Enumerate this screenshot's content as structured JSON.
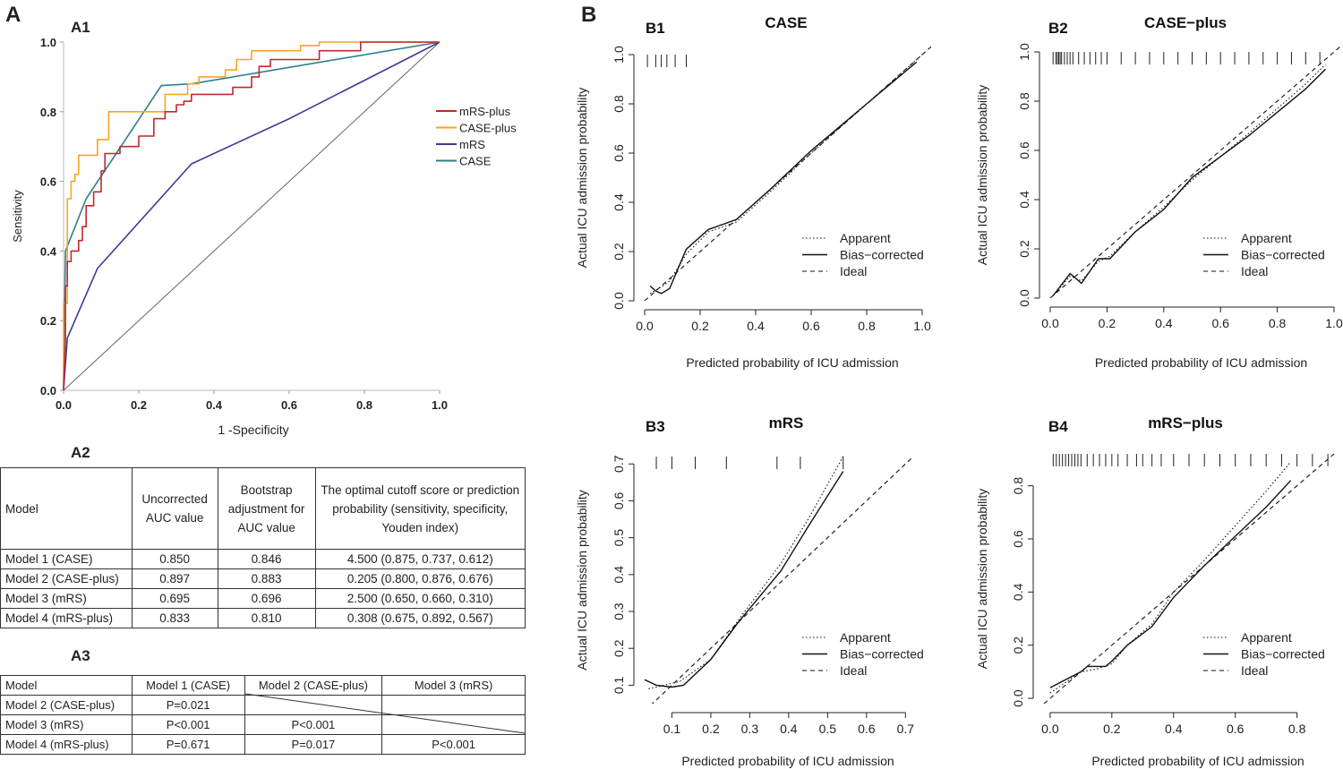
{
  "panels": {
    "a": "A",
    "b": "B"
  },
  "a1": {
    "label": "A1",
    "chart_data": {
      "type": "line",
      "title": "",
      "xlabel": "1 -Specificity",
      "ylabel": "Sensitivity",
      "xlim": [
        0,
        1
      ],
      "ylim": [
        0,
        1
      ],
      "xticks": [
        "0.0",
        "0.2",
        "0.4",
        "0.6",
        "0.8",
        "1.0"
      ],
      "yticks": [
        "0.0",
        "0.2",
        "0.4",
        "0.6",
        "0.8",
        "1.0"
      ],
      "legend": "right",
      "series": [
        {
          "name": "mRS-plus",
          "color": "#c0282d",
          "x": [
            0,
            0.005,
            0.005,
            0.01,
            0.01,
            0.02,
            0.02,
            0.04,
            0.04,
            0.05,
            0.05,
            0.06,
            0.06,
            0.08,
            0.08,
            0.1,
            0.1,
            0.11,
            0.11,
            0.15,
            0.15,
            0.17,
            0.2,
            0.2,
            0.24,
            0.24,
            0.27,
            0.27,
            0.3,
            0.3,
            0.32,
            0.32,
            0.34,
            0.34,
            0.38,
            0.38,
            0.45,
            0.45,
            0.5,
            0.5,
            0.52,
            0.52,
            0.55,
            0.55,
            0.6,
            0.6,
            0.68,
            0.68,
            0.72,
            0.72,
            0.75,
            0.75,
            0.79,
            0.79,
            0.95,
            0.95,
            1
          ],
          "y": [
            0,
            0.15,
            0.3,
            0.3,
            0.37,
            0.37,
            0.4,
            0.4,
            0.43,
            0.43,
            0.47,
            0.47,
            0.53,
            0.53,
            0.57,
            0.57,
            0.63,
            0.63,
            0.68,
            0.68,
            0.7,
            0.7,
            0.7,
            0.73,
            0.73,
            0.78,
            0.78,
            0.8,
            0.8,
            0.82,
            0.82,
            0.83,
            0.83,
            0.85,
            0.85,
            0.85,
            0.85,
            0.87,
            0.87,
            0.9,
            0.9,
            0.93,
            0.93,
            0.95,
            0.95,
            0.95,
            0.95,
            0.975,
            0.975,
            0.975,
            0.975,
            0.975,
            0.975,
            1,
            1,
            1,
            1
          ]
        },
        {
          "name": "CASE-plus",
          "color": "#f5a623",
          "x": [
            0,
            0,
            0.01,
            0.01,
            0.02,
            0.02,
            0.03,
            0.03,
            0.04,
            0.04,
            0.09,
            0.09,
            0.12,
            0.12,
            0.27,
            0.27,
            0.33,
            0.33,
            0.36,
            0.36,
            0.43,
            0.43,
            0.46,
            0.46,
            0.5,
            0.5,
            0.53,
            0.53,
            0.54,
            0.54,
            0.63,
            0.63,
            0.68,
            0.68,
            0.86,
            0.86,
            1
          ],
          "y": [
            0,
            0.25,
            0.25,
            0.55,
            0.55,
            0.6,
            0.6,
            0.62,
            0.62,
            0.675,
            0.675,
            0.72,
            0.72,
            0.8,
            0.8,
            0.85,
            0.85,
            0.88,
            0.88,
            0.9,
            0.9,
            0.92,
            0.92,
            0.95,
            0.95,
            0.975,
            0.975,
            0.975,
            0.975,
            0.975,
            0.975,
            0.99,
            0.99,
            1,
            1,
            1,
            1
          ]
        },
        {
          "name": "mRS",
          "color": "#3c3c96",
          "x": [
            0,
            0.01,
            0.09,
            0.34,
            0.6,
            1
          ],
          "y": [
            0,
            0.15,
            0.35,
            0.65,
            0.78,
            1
          ]
        },
        {
          "name": "CASE",
          "color": "#2c7f8c",
          "x": [
            0,
            0.005,
            0.06,
            0.26,
            0.34,
            1
          ],
          "y": [
            0,
            0.4,
            0.55,
            0.875,
            0.88,
            1
          ]
        }
      ]
    }
  },
  "a2": {
    "label": "A2",
    "headers": [
      "Model",
      "Uncorrected AUC value",
      "Bootstrap adjustment for AUC value",
      "The optimal cutoff score or prediction probability (sensitivity, specificity, Youden index)"
    ],
    "rows": [
      [
        "Model 1 (CASE)",
        "0.850",
        "0.846",
        "4.500 (0.875, 0.737, 0.612)"
      ],
      [
        "Model 2 (CASE-plus)",
        "0.897",
        "0.883",
        "0.205 (0.800, 0.876, 0.676)"
      ],
      [
        "Model 3 (mRS)",
        "0.695",
        "0.696",
        "2.500 (0.650, 0.660, 0.310)"
      ],
      [
        "Model 4 (mRS-plus)",
        "0.833",
        "0.810",
        "0.308 (0.675, 0.892, 0.567)"
      ]
    ]
  },
  "a3": {
    "label": "A3",
    "headers": [
      "Model",
      "Model 1 (CASE)",
      "Model 2 (CASE-plus)",
      "Model 3 (mRS)"
    ],
    "rows": [
      [
        "Model 2 (CASE-plus)",
        "P=0.021",
        "",
        ""
      ],
      [
        "Model 3 (mRS)",
        "P<0.001",
        "P<0.001",
        ""
      ],
      [
        "Model 4 (mRS-plus)",
        "P=0.671",
        "P=0.017",
        "P<0.001"
      ]
    ]
  },
  "calibration_legend": [
    "Apparent",
    "Bias−corrected",
    "Ideal"
  ],
  "b_charts": [
    {
      "label": "B1",
      "chart_data": {
        "type": "line",
        "title": "CASE",
        "xlabel": "Predicted probability of ICU admission",
        "ylabel": "Actual ICU admission probability",
        "xlim": [
          0,
          1
        ],
        "ylim": [
          0,
          1
        ],
        "xticks": [
          "0.0",
          "0.2",
          "0.4",
          "0.6",
          "0.8",
          "1.0"
        ],
        "yticks": [
          "0.0",
          "0.2",
          "0.4",
          "0.6",
          "0.8",
          "1.0"
        ],
        "rug": [
          0.01,
          0.04,
          0.06,
          0.08,
          0.11,
          0.15
        ],
        "series": [
          {
            "name": "Apparent",
            "x": [
              0.02,
              0.05,
              0.09,
              0.15,
              0.23,
              0.33,
              0.45,
              0.6,
              0.8,
              1.0
            ],
            "y": [
              0.03,
              0.05,
              0.08,
              0.19,
              0.28,
              0.32,
              0.44,
              0.6,
              0.8,
              1.0
            ]
          },
          {
            "name": "Bias−corrected",
            "x": [
              0.02,
              0.04,
              0.06,
              0.09,
              0.12,
              0.15,
              0.23,
              0.33,
              0.45,
              0.6,
              0.8,
              0.98
            ],
            "y": [
              0.06,
              0.04,
              0.03,
              0.05,
              0.13,
              0.21,
              0.29,
              0.33,
              0.45,
              0.61,
              0.8,
              0.97
            ]
          },
          {
            "name": "Ideal",
            "x": [
              0,
              1.05
            ],
            "y": [
              0,
              1.05
            ]
          }
        ]
      }
    },
    {
      "label": "B2",
      "chart_data": {
        "type": "line",
        "title": "CASE−plus",
        "xlabel": "Predicted probability of ICU admission",
        "ylabel": "Actual ICU admission probability",
        "xlim": [
          0,
          1
        ],
        "ylim": [
          0,
          1
        ],
        "xticks": [
          "0.0",
          "0.2",
          "0.4",
          "0.6",
          "0.8",
          "1.0"
        ],
        "yticks": [
          "0.0",
          "0.2",
          "0.4",
          "0.6",
          "0.8",
          "1.0"
        ],
        "rug": [
          0.01,
          0.02,
          0.025,
          0.03,
          0.035,
          0.04,
          0.05,
          0.06,
          0.07,
          0.08,
          0.1,
          0.12,
          0.14,
          0.16,
          0.18,
          0.2,
          0.25,
          0.3,
          0.35,
          0.4,
          0.45,
          0.5,
          0.55,
          0.6,
          0.65,
          0.7,
          0.75,
          0.8,
          0.85,
          0.9,
          0.95
        ],
        "series": [
          {
            "name": "Apparent",
            "x": [
              0.01,
              0.07,
              0.11,
              0.17,
              0.21,
              0.3,
              0.4,
              0.5,
              0.7,
              0.9,
              0.97
            ],
            "y": [
              0.01,
              0.09,
              0.07,
              0.15,
              0.17,
              0.27,
              0.37,
              0.48,
              0.67,
              0.87,
              0.95
            ]
          },
          {
            "name": "Bias−corrected",
            "x": [
              0.01,
              0.07,
              0.11,
              0.17,
              0.21,
              0.3,
              0.4,
              0.5,
              0.7,
              0.9,
              0.97
            ],
            "y": [
              0.01,
              0.1,
              0.06,
              0.16,
              0.16,
              0.27,
              0.36,
              0.49,
              0.66,
              0.85,
              0.93
            ]
          },
          {
            "name": "Ideal",
            "x": [
              0,
              1.03
            ],
            "y": [
              0,
              1.03
            ]
          }
        ]
      }
    },
    {
      "label": "B3",
      "chart_data": {
        "type": "line",
        "title": "mRS",
        "xlabel": "Predicted probability of ICU admission",
        "ylabel": "Actual ICU admission probability",
        "xlim": [
          0.03,
          0.72
        ],
        "ylim": [
          0.05,
          0.72
        ],
        "xticks": [
          "0.1",
          "0.2",
          "0.3",
          "0.4",
          "0.5",
          "0.6",
          "0.7"
        ],
        "yticks": [
          "0.1",
          "0.2",
          "0.3",
          "0.4",
          "0.5",
          "0.6",
          "0.7"
        ],
        "rug": [
          0.06,
          0.1,
          0.16,
          0.24,
          0.37,
          0.43,
          0.54
        ],
        "series": [
          {
            "name": "Apparent",
            "x": [
              0.04,
              0.08,
              0.12,
              0.2,
              0.28,
              0.38,
              0.45,
              0.54
            ],
            "y": [
              0.09,
              0.1,
              0.11,
              0.17,
              0.29,
              0.43,
              0.55,
              0.72
            ]
          },
          {
            "name": "Bias−corrected",
            "x": [
              0.03,
              0.06,
              0.1,
              0.13,
              0.2,
              0.27,
              0.38,
              0.45,
              0.54
            ],
            "y": [
              0.115,
              0.1,
              0.095,
              0.1,
              0.17,
              0.27,
              0.41,
              0.53,
              0.68
            ]
          },
          {
            "name": "Ideal",
            "x": [
              0.03,
              0.72
            ],
            "y": [
              0.03,
              0.72
            ]
          }
        ]
      }
    },
    {
      "label": "B4",
      "chart_data": {
        "type": "line",
        "title": "mRS−plus",
        "xlabel": "Predicted probability of ICU admission",
        "ylabel": "Actual ICU admission probability",
        "xlim": [
          -0.02,
          0.92
        ],
        "ylim": [
          -0.02,
          0.92
        ],
        "xticks": [
          "0.0",
          "0.2",
          "0.4",
          "0.6",
          "0.8"
        ],
        "yticks": [
          "0.0",
          "0.2",
          "0.4",
          "0.6",
          "0.8"
        ],
        "rug": [
          0.01,
          0.02,
          0.03,
          0.04,
          0.05,
          0.06,
          0.07,
          0.08,
          0.09,
          0.1,
          0.12,
          0.14,
          0.16,
          0.18,
          0.2,
          0.22,
          0.25,
          0.28,
          0.3,
          0.33,
          0.36,
          0.4,
          0.45,
          0.5,
          0.55,
          0.6,
          0.65,
          0.7,
          0.75,
          0.8,
          0.85,
          0.9
        ],
        "series": [
          {
            "name": "Apparent",
            "x": [
              0,
              0.05,
              0.1,
              0.15,
              0.2,
              0.25,
              0.33,
              0.4,
              0.5,
              0.6,
              0.7,
              0.78
            ],
            "y": [
              0.02,
              0.06,
              0.1,
              0.11,
              0.13,
              0.2,
              0.28,
              0.4,
              0.52,
              0.65,
              0.78,
              0.89
            ]
          },
          {
            "name": "Bias−corrected",
            "x": [
              0,
              0.05,
              0.1,
              0.12,
              0.15,
              0.18,
              0.2,
              0.25,
              0.33,
              0.4,
              0.5,
              0.6,
              0.7,
              0.78
            ],
            "y": [
              0.04,
              0.07,
              0.1,
              0.12,
              0.12,
              0.12,
              0.14,
              0.2,
              0.27,
              0.38,
              0.5,
              0.61,
              0.72,
              0.82
            ]
          },
          {
            "name": "Ideal",
            "x": [
              -0.02,
              0.92
            ],
            "y": [
              -0.02,
              0.92
            ]
          }
        ]
      }
    }
  ]
}
